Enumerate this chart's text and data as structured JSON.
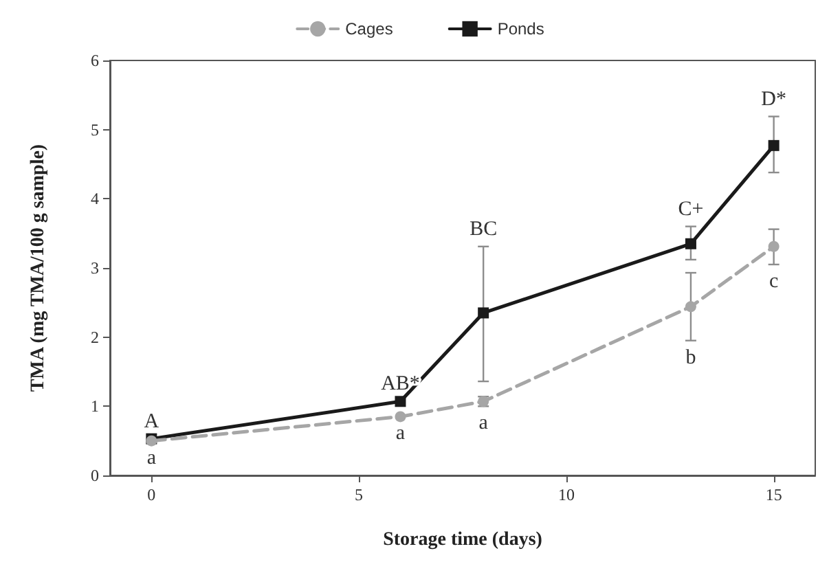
{
  "chart_data": {
    "type": "line",
    "xlabel": "Storage time (days)",
    "ylabel": "TMA (mg TMA/100 g sample)",
    "x": [
      0,
      6,
      8,
      13,
      15
    ],
    "series": [
      {
        "name": "Cages",
        "color": "#a6a6a6",
        "marker": "circle",
        "line_style": "dashed",
        "values": [
          0.5,
          0.85,
          1.07,
          2.44,
          3.31
        ],
        "errors": [
          null,
          null,
          [
            1.0,
            1.14
          ],
          [
            1.95,
            2.93
          ],
          [
            3.05,
            3.56
          ]
        ]
      },
      {
        "name": "Ponds",
        "color": "#1a1a1a",
        "marker": "square",
        "line_style": "solid",
        "values": [
          0.53,
          1.07,
          2.35,
          3.35,
          4.77
        ],
        "errors": [
          null,
          null,
          [
            1.36,
            3.31
          ],
          [
            3.12,
            3.6
          ],
          [
            4.38,
            5.19
          ]
        ]
      }
    ],
    "xlim": [
      -1,
      16
    ],
    "xticks": [
      0,
      5,
      10,
      15
    ],
    "ylim": [
      0,
      6
    ],
    "yticks": [
      0,
      1,
      2,
      3,
      4,
      5,
      6
    ],
    "grid": false,
    "legend": "top",
    "annotations": [
      {
        "text": "A",
        "x": 0,
        "y": 0.53
      },
      {
        "text": "a",
        "x": 0,
        "y": 0.5
      },
      {
        "text": "AB*",
        "x": 6,
        "y": 1.07
      },
      {
        "text": "a",
        "x": 6,
        "y": 0.85
      },
      {
        "text": "BC",
        "x": 8,
        "y": 3.31
      },
      {
        "text": "a",
        "x": 8,
        "y": 1.0
      },
      {
        "text": "C+",
        "x": 13,
        "y": 3.6
      },
      {
        "text": "b",
        "x": 13,
        "y": 1.95
      },
      {
        "text": "D*",
        "x": 15,
        "y": 5.19
      },
      {
        "text": "c",
        "x": 15,
        "y": 3.05
      }
    ]
  }
}
